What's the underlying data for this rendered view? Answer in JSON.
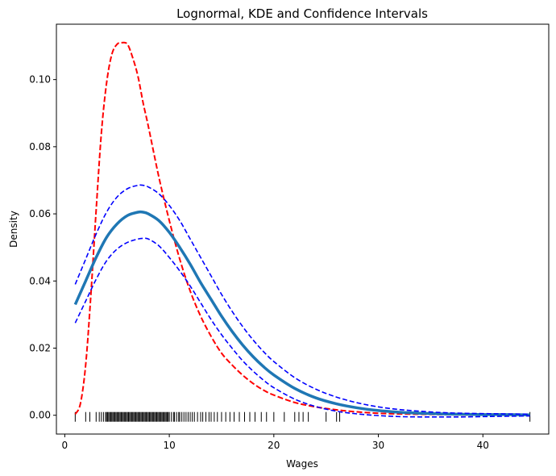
{
  "chart_data": {
    "type": "line",
    "title": "Lognormal, KDE and Confidence Intervals",
    "xlabel": "Wages",
    "ylabel": "Density",
    "xlim": [
      -0.8,
      46.3
    ],
    "ylim": [
      -0.0056,
      0.1165
    ],
    "xticks": [
      0,
      10,
      20,
      30,
      40
    ],
    "yticks": [
      0.0,
      0.02,
      0.04,
      0.06,
      0.08,
      0.1
    ],
    "xtick_labels": [
      "0",
      "10",
      "20",
      "30",
      "40"
    ],
    "ytick_labels": [
      "0.00",
      "0.02",
      "0.04",
      "0.06",
      "0.08",
      "0.10"
    ],
    "grid": false,
    "series": [
      {
        "color": "#ff0000",
        "style": "dashed",
        "width": 2,
        "x": [
          1,
          1.5,
          2,
          2.5,
          3,
          3.5,
          4,
          4.5,
          5,
          5.5,
          6,
          6.5,
          7,
          7.5,
          8,
          9,
          10,
          11,
          12,
          13,
          14,
          15,
          16,
          17,
          18,
          19,
          20,
          22,
          24,
          26,
          28,
          30,
          32,
          34,
          36,
          38,
          40,
          42,
          44.5
        ],
        "y": [
          0.0003,
          0.0035,
          0.015,
          0.036,
          0.061,
          0.084,
          0.099,
          0.1075,
          0.1105,
          0.111,
          0.1105,
          0.1065,
          0.101,
          0.093,
          0.086,
          0.071,
          0.058,
          0.0465,
          0.037,
          0.0295,
          0.0235,
          0.0185,
          0.015,
          0.012,
          0.0095,
          0.0075,
          0.006,
          0.0038,
          0.0025,
          0.0016,
          0.001,
          0.0006,
          0.0004,
          0.0003,
          0.0002,
          0.0001,
          0.0001,
          0.0001,
          0.0
        ]
      },
      {
        "color": "#1f77b4",
        "style": "solid",
        "width": 3.5,
        "x": [
          1,
          2,
          3,
          4,
          5,
          6,
          7,
          7.5,
          8,
          9,
          10,
          11,
          12,
          13,
          14,
          15,
          16,
          17,
          18,
          19,
          20,
          22,
          24,
          26,
          28,
          30,
          32,
          34,
          36,
          38,
          40,
          42,
          44.5
        ],
        "y": [
          0.033,
          0.04,
          0.047,
          0.053,
          0.057,
          0.0595,
          0.0605,
          0.0605,
          0.06,
          0.058,
          0.0545,
          0.05,
          0.045,
          0.0395,
          0.0345,
          0.0295,
          0.025,
          0.021,
          0.0175,
          0.0145,
          0.012,
          0.008,
          0.0052,
          0.0034,
          0.0022,
          0.0014,
          0.0009,
          0.0006,
          0.0004,
          0.0003,
          0.0002,
          0.0002,
          0.0001
        ]
      },
      {
        "color": "#0000ff",
        "style": "dashed",
        "width": 1.6,
        "x": [
          1,
          2,
          3,
          4,
          5,
          6,
          7,
          7.5,
          8,
          9,
          10,
          11,
          12,
          13,
          14,
          15,
          16,
          17,
          18,
          19,
          20,
          22,
          24,
          26,
          28,
          30,
          32,
          34,
          36,
          38,
          40,
          42,
          44.5
        ],
        "y": [
          0.039,
          0.0465,
          0.054,
          0.0605,
          0.065,
          0.0675,
          0.0685,
          0.0685,
          0.068,
          0.066,
          0.0625,
          0.058,
          0.0525,
          0.047,
          0.0415,
          0.036,
          0.031,
          0.0265,
          0.0225,
          0.019,
          0.016,
          0.0112,
          0.0078,
          0.0054,
          0.0037,
          0.0025,
          0.0017,
          0.0012,
          0.0008,
          0.0006,
          0.0005,
          0.0004,
          0.0003
        ]
      },
      {
        "color": "#0000ff",
        "style": "dashed",
        "width": 1.6,
        "x": [
          1,
          2,
          3,
          4,
          5,
          6,
          7,
          7.5,
          8,
          9,
          10,
          11,
          12,
          13,
          14,
          15,
          16,
          17,
          18,
          19,
          20,
          22,
          24,
          26,
          28,
          30,
          32,
          34,
          36,
          38,
          40,
          42,
          44.5
        ],
        "y": [
          0.0275,
          0.034,
          0.0405,
          0.046,
          0.0495,
          0.0515,
          0.0525,
          0.0527,
          0.0525,
          0.0505,
          0.047,
          0.043,
          0.0385,
          0.0335,
          0.0285,
          0.024,
          0.02,
          0.0163,
          0.0132,
          0.0105,
          0.0082,
          0.0048,
          0.0026,
          0.0012,
          0.0004,
          -0.0001,
          -0.0004,
          -0.0005,
          -0.0005,
          -0.0005,
          -0.0004,
          -0.0003,
          -0.0002
        ]
      }
    ],
    "rug": [
      1,
      2,
      2.4,
      3,
      3.3,
      3.5,
      3.7,
      3.9,
      4.0,
      4.1,
      4.2,
      4.3,
      4.4,
      4.5,
      4.6,
      4.7,
      4.8,
      4.9,
      5.0,
      5.1,
      5.2,
      5.3,
      5.4,
      5.5,
      5.6,
      5.7,
      5.8,
      5.9,
      6.0,
      6.1,
      6.2,
      6.3,
      6.4,
      6.5,
      6.6,
      6.7,
      6.8,
      6.9,
      7.0,
      7.1,
      7.2,
      7.3,
      7.4,
      7.5,
      7.6,
      7.7,
      7.8,
      7.9,
      8.0,
      8.1,
      8.2,
      8.3,
      8.4,
      8.5,
      8.6,
      8.7,
      8.8,
      8.9,
      9.0,
      9.1,
      9.2,
      9.3,
      9.4,
      9.5,
      9.6,
      9.7,
      9.8,
      9.9,
      10.0,
      10.2,
      10.4,
      10.5,
      10.7,
      10.9,
      11.0,
      11.2,
      11.4,
      11.6,
      11.8,
      12.0,
      12.2,
      12.4,
      12.7,
      13.0,
      13.2,
      13.5,
      13.8,
      14.0,
      14.3,
      14.6,
      15.0,
      15.4,
      15.8,
      16.2,
      16.7,
      17.2,
      17.7,
      18.2,
      18.8,
      19.3,
      20.0,
      21.0,
      22.0,
      22.4,
      22.8,
      23.3,
      25.0,
      26.0,
      26.3,
      44.5
    ]
  }
}
